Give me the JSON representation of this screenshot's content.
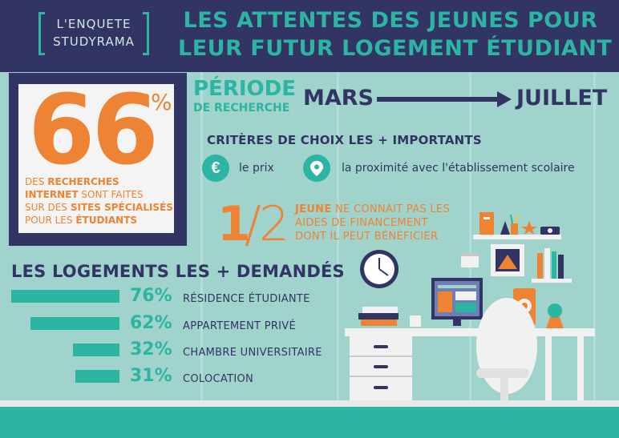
{
  "brand": {
    "line1": "L'ENQUETE",
    "line2": "STUDYRAMA"
  },
  "headline": {
    "line1": "LES ATTENTES DES JEUNES POUR",
    "line2": "LEUR FUTUR LOGEMENT ÉTUDIANT"
  },
  "stat66": {
    "value": "66",
    "unit": "%",
    "caption": {
      "p1": "DES ",
      "b1": "RECHERCHES",
      "p2": "",
      "b2": "INTERNET",
      "p3": " SONT FAITES",
      "p4": "SUR DES ",
      "b3": "SITES SPÉCIALISÉS",
      "p5": "POUR LES ",
      "b4": "ÉTUDIANTS"
    }
  },
  "periode": {
    "title": "PÉRIODE",
    "subtitle": "DE RECHERCHE",
    "start": "MARS",
    "end": "JUILLET"
  },
  "criteres": {
    "title": "CRITÈRES DE CHOIX LES + IMPORTANTS",
    "items": [
      {
        "icon": "euro-icon",
        "label": "le prix"
      },
      {
        "icon": "location-pin-icon",
        "label": "la proximité avec l'établissement scolaire"
      }
    ]
  },
  "half": {
    "numerator": "1",
    "slash": "/",
    "denominator": "2",
    "bold": "JEUNE",
    "line1": " NE CONNAIT PAS LES",
    "line2": "AIDES DE FINANCEMENT",
    "line3": "DONT IL PEUT BÉNÉFICIER"
  },
  "logements": {
    "title": "LES LOGEMENTS LES + DEMANDÉS",
    "rows": [
      {
        "pct": "76%",
        "value": 76,
        "label": "RÉSIDENCE ÉTUDIANTE"
      },
      {
        "pct": "62%",
        "value": 62,
        "label": "APPARTEMENT PRIVÉ"
      },
      {
        "pct": "32%",
        "value": 32,
        "label": "CHAMBRE UNIVERSITAIRE"
      },
      {
        "pct": "31%",
        "value": 31,
        "label": "COLOCATION"
      }
    ]
  },
  "colors": {
    "navy": "#323463",
    "teal": "#2bb5a2",
    "orange": "#ee8333",
    "wall": "#9fd3cb"
  }
}
